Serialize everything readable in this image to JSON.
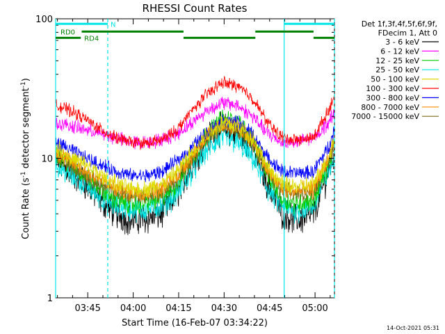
{
  "chart_data": {
    "type": "line",
    "title": "RHESSI Count Rates",
    "xlabel": "Start Time (16-Feb-07 03:34:22)",
    "ylabel_main": "Count Rate (s",
    "ylabel_sup1": "-1",
    "ylabel_mid": " detector segment",
    "ylabel_sup2": "-1",
    "ylabel_end": ")",
    "y_scale": "log",
    "ylim": [
      1,
      100
    ],
    "xlim_minutes": [
      0,
      92
    ],
    "x_tick_labels": [
      {
        "label": "03:45",
        "minute": 10.6
      },
      {
        "label": "04:00",
        "minute": 25.6
      },
      {
        "label": "04:15",
        "minute": 40.6
      },
      {
        "label": "04:30",
        "minute": 55.6
      },
      {
        "label": "04:45",
        "minute": 70.6
      },
      {
        "label": "05:00",
        "minute": 85.6
      }
    ],
    "y_tick_labels": [
      {
        "label": "1",
        "value": 1
      },
      {
        "label": "10",
        "value": 10
      },
      {
        "label": "100",
        "value": 100
      }
    ],
    "legend": {
      "placement": "right",
      "header_line1": "Det 1f,3f,4f,5f,6f,9f,",
      "header_line2": "FDecim 1, Att 0"
    },
    "series": [
      {
        "name": "3 - 6 keV",
        "color": "#000000",
        "x": [
          0,
          5,
          10,
          15,
          20,
          25,
          30,
          35,
          40,
          45,
          50,
          55,
          60,
          65,
          70,
          75,
          80,
          85,
          90,
          92
        ],
        "y": [
          9.5,
          8,
          6.5,
          5,
          4,
          3.6,
          3.7,
          4,
          5.5,
          9,
          14,
          16.5,
          15,
          12,
          6.5,
          4,
          3.6,
          4,
          8,
          11
        ]
      },
      {
        "name": "6 - 12 keV",
        "color": "#ff00ff",
        "x": [
          0,
          5,
          10,
          15,
          20,
          25,
          30,
          35,
          40,
          45,
          50,
          55,
          60,
          65,
          70,
          75,
          80,
          85,
          90,
          92
        ],
        "y": [
          18,
          17,
          16,
          15,
          14,
          13,
          13,
          13.5,
          15,
          18,
          22,
          25,
          24,
          20,
          15,
          13,
          13,
          14,
          18,
          22
        ]
      },
      {
        "name": "12 - 25 keV",
        "color": "#00cc00",
        "x": [
          0,
          5,
          10,
          15,
          20,
          25,
          30,
          35,
          40,
          45,
          50,
          55,
          60,
          65,
          70,
          75,
          80,
          85,
          90,
          92
        ],
        "y": [
          11,
          9,
          7.5,
          6,
          5,
          4.7,
          4.8,
          5.2,
          6.5,
          10,
          15,
          19,
          18,
          14,
          7.5,
          5,
          4.8,
          5,
          9,
          13
        ]
      },
      {
        "name": "25 - 50 keV",
        "color": "#00e5e5",
        "x": [
          0,
          5,
          10,
          15,
          20,
          25,
          30,
          35,
          40,
          45,
          50,
          55,
          60,
          65,
          70,
          75,
          80,
          85,
          90,
          92
        ],
        "y": [
          9,
          7.5,
          6.5,
          5.2,
          4.5,
          4.3,
          4.3,
          4.6,
          5.5,
          8,
          11.5,
          14,
          13,
          10,
          6,
          4.4,
          4.2,
          4.5,
          8,
          10
        ]
      },
      {
        "name": "50 - 100 keV",
        "color": "#dddd00",
        "x": [
          0,
          5,
          10,
          15,
          20,
          25,
          30,
          35,
          40,
          45,
          50,
          55,
          60,
          65,
          70,
          75,
          80,
          85,
          90,
          92
        ],
        "y": [
          12,
          10,
          9,
          7.5,
          6.5,
          6,
          6,
          6.5,
          8,
          11,
          15,
          18,
          17,
          14,
          8.5,
          6.5,
          6.2,
          6.5,
          10,
          14
        ]
      },
      {
        "name": "100 - 300 keV",
        "color": "#ff0000",
        "x": [
          0,
          5,
          10,
          15,
          20,
          25,
          30,
          35,
          40,
          45,
          50,
          55,
          60,
          65,
          70,
          75,
          80,
          85,
          90,
          92
        ],
        "y": [
          24,
          22,
          19,
          16,
          14,
          13,
          12.8,
          13.5,
          16,
          22,
          29,
          35,
          33,
          27,
          18,
          14,
          13.5,
          14,
          22,
          28
        ]
      },
      {
        "name": "300 - 800 keV",
        "color": "#0000ff",
        "x": [
          0,
          5,
          10,
          15,
          20,
          25,
          30,
          35,
          40,
          45,
          50,
          55,
          60,
          65,
          70,
          75,
          80,
          85,
          90,
          92
        ],
        "y": [
          13,
          11.5,
          10,
          9,
          8,
          7.5,
          7.5,
          8,
          9.5,
          12,
          15.5,
          18.5,
          18,
          15,
          10,
          8,
          7.8,
          8,
          12,
          16
        ]
      },
      {
        "name": "800 - 7000 keV",
        "color": "#ff8c00",
        "x": [
          0,
          5,
          10,
          15,
          20,
          25,
          30,
          35,
          40,
          45,
          50,
          55,
          60,
          65,
          70,
          75,
          80,
          85,
          90,
          92
        ],
        "y": [
          11,
          9.5,
          8,
          7,
          6,
          5.7,
          5.7,
          6,
          7.5,
          10.5,
          14.5,
          17.5,
          17,
          13.5,
          8,
          6,
          5.8,
          6,
          10,
          13
        ]
      },
      {
        "name": "7000 - 15000 keV",
        "color": "#7a6a1a",
        "x": [
          0,
          5,
          10,
          15,
          20,
          25,
          30,
          35,
          40,
          45,
          50,
          55,
          60,
          65,
          70,
          75,
          80,
          85,
          90,
          92
        ],
        "y": [
          10.5,
          9,
          7.5,
          6.5,
          5.7,
          5.4,
          5.4,
          5.8,
          7,
          10,
          14,
          17,
          16.5,
          13,
          7.8,
          5.8,
          5.6,
          5.8,
          9.5,
          12.5
        ]
      }
    ],
    "annotations": {
      "night_label": "N",
      "rd0_label": "RD0",
      "rd4_label": "RD4",
      "night_segments_minutes": [
        [
          0,
          17.2
        ],
        [
          75.4,
          92
        ]
      ],
      "night_solid_lines_minutes": [
        0,
        75.4
      ],
      "night_dashed_lines_minutes": [
        17.2,
        92
      ],
      "night_level_value": 92,
      "rd0_segments_minutes": [
        [
          8.6,
          42.2
        ],
        [
          65.9,
          85.1
        ]
      ],
      "rd0_level_value": 81,
      "rd4_segments_minutes": [
        [
          0,
          8.3
        ],
        [
          42.2,
          65.9
        ],
        [
          85.1,
          92
        ]
      ],
      "rd4_level_value": 73
    },
    "timestamp": "14-Oct-2021 05:31"
  }
}
